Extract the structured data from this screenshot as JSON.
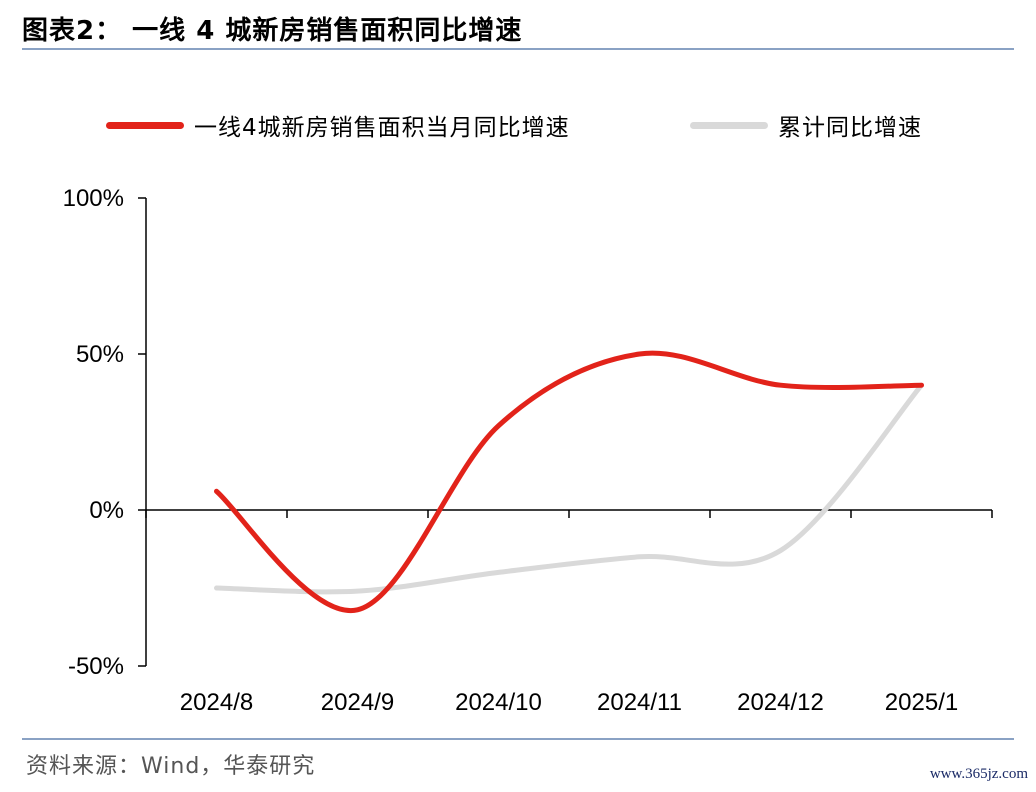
{
  "header": {
    "title": "图表2：  一线 4 城新房销售面积同比增速"
  },
  "footer": {
    "source": "资料来源：Wind，华泰研究",
    "watermark": "www.365jz.com"
  },
  "colors": {
    "rule": "#8aa2c4",
    "series_monthly": "#e2231a",
    "series_cumulative": "#d9d9d9"
  },
  "chart_data": {
    "type": "line",
    "title": "",
    "xlabel": "",
    "ylabel": "",
    "categories": [
      "2024/8",
      "2024/9",
      "2024/10",
      "2024/11",
      "2024/12",
      "2025/1"
    ],
    "y_ticks": [
      "100%",
      "50%",
      "0%",
      "-50%"
    ],
    "ylim": [
      -50,
      100
    ],
    "grid": false,
    "legend_position": "top",
    "series": [
      {
        "name": "一线4城新房销售面积当月同比增速",
        "color": "#e2231a",
        "values": [
          6,
          -32,
          27,
          50,
          40,
          40
        ]
      },
      {
        "name": "累计同比增速",
        "color": "#d9d9d9",
        "values": [
          -25,
          -26,
          -20,
          -15,
          -13,
          40
        ]
      }
    ]
  }
}
